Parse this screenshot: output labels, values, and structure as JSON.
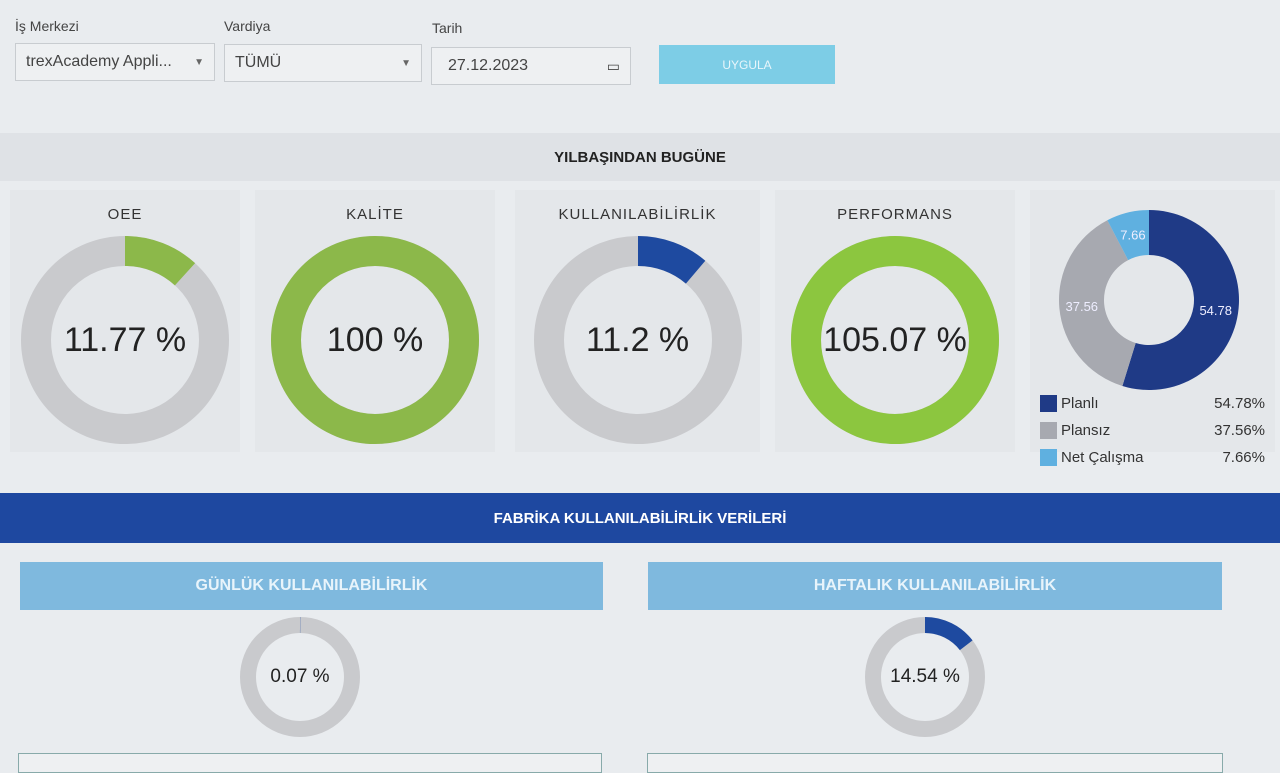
{
  "filters": {
    "work_center": {
      "label": "İş Merkezi",
      "value": "trexAcademy Appli..."
    },
    "shift": {
      "label": "Vardiya",
      "value": "TÜMÜ"
    },
    "date": {
      "label": "Tarih",
      "value": "27.12.2023"
    },
    "apply_label": "UYGULA"
  },
  "ytd": {
    "title": "YILBAŞINDAN BUGÜNE",
    "gauges": [
      {
        "title": "OEE",
        "value": 11.77,
        "text": "11.77 %",
        "color": "#8cb84a"
      },
      {
        "title": "KALİTE",
        "value": 100,
        "text": "100 %",
        "color": "#8cb84a"
      },
      {
        "title": "KULLANILABİLİRLİK",
        "value": 11.2,
        "text": "11.2 %",
        "color": "#1e4aa0"
      },
      {
        "title": "PERFORMANS",
        "value": 105.07,
        "text": "105.07 %",
        "color": "#8cc63f"
      }
    ],
    "breakdown": {
      "slices": [
        {
          "name": "Planlı",
          "value": 54.78,
          "label": "54.78",
          "pct": "54.78%",
          "color": "#1f3a86"
        },
        {
          "name": "Plansız",
          "value": 37.56,
          "label": "37.56",
          "pct": "37.56%",
          "color": "#a7a9b0"
        },
        {
          "name": "Net Çalışma",
          "value": 7.66,
          "label": "7.66",
          "pct": "7.66%",
          "color": "#5fb0e0"
        }
      ]
    }
  },
  "factory": {
    "title": "FABRİKA KULLANILABİLİRLİK VERİLERİ",
    "daily": {
      "title": "GÜNLÜK KULLANILABİLİRLİK",
      "value": 0.07,
      "text": "0.07 %",
      "color": "#1e4aa0"
    },
    "weekly": {
      "title": "HAFTALIK KULLANILABİLİRLİK",
      "value": 14.54,
      "text": "14.54 %",
      "color": "#1e4aa0"
    }
  }
}
